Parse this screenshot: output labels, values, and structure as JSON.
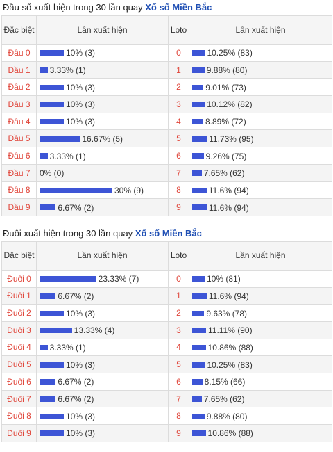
{
  "sections": [
    {
      "title_prefix": "Đầu số xuất hiện trong 30 lần quay ",
      "title_link": "Xổ số Miền Bắc",
      "headers": [
        "Đặc biệt",
        "Lần xuất hiện",
        "Loto",
        "Lần xuất hiện"
      ],
      "rows": [
        {
          "label": "Đầu 0",
          "special_pct": 10,
          "special_text": "10% (3)",
          "num": "0",
          "loto_pct": 10.25,
          "loto_text": "10.25% (83)"
        },
        {
          "label": "Đầu 1",
          "special_pct": 3.33,
          "special_text": "3.33% (1)",
          "num": "1",
          "loto_pct": 9.88,
          "loto_text": "9.88% (80)"
        },
        {
          "label": "Đầu 2",
          "special_pct": 10,
          "special_text": "10% (3)",
          "num": "2",
          "loto_pct": 9.01,
          "loto_text": "9.01% (73)"
        },
        {
          "label": "Đầu 3",
          "special_pct": 10,
          "special_text": "10% (3)",
          "num": "3",
          "loto_pct": 10.12,
          "loto_text": "10.12% (82)"
        },
        {
          "label": "Đầu 4",
          "special_pct": 10,
          "special_text": "10% (3)",
          "num": "4",
          "loto_pct": 8.89,
          "loto_text": "8.89% (72)"
        },
        {
          "label": "Đầu 5",
          "special_pct": 16.67,
          "special_text": "16.67% (5)",
          "num": "5",
          "loto_pct": 11.73,
          "loto_text": "11.73% (95)"
        },
        {
          "label": "Đầu 6",
          "special_pct": 3.33,
          "special_text": "3.33% (1)",
          "num": "6",
          "loto_pct": 9.26,
          "loto_text": "9.26% (75)"
        },
        {
          "label": "Đầu 7",
          "special_pct": 0,
          "special_text": "0% (0)",
          "num": "7",
          "loto_pct": 7.65,
          "loto_text": "7.65% (62)"
        },
        {
          "label": "Đầu 8",
          "special_pct": 30,
          "special_text": "30% (9)",
          "num": "8",
          "loto_pct": 11.6,
          "loto_text": "11.6% (94)"
        },
        {
          "label": "Đầu 9",
          "special_pct": 6.67,
          "special_text": "6.67% (2)",
          "num": "9",
          "loto_pct": 11.6,
          "loto_text": "11.6% (94)"
        }
      ]
    },
    {
      "title_prefix": "Đuôi xuất hiện trong 30 lần quay ",
      "title_link": "Xổ số Miền Bắc",
      "headers": [
        "Đặc biệt",
        "Lần xuất hiện",
        "Loto",
        "Lần xuất hiện"
      ],
      "rows": [
        {
          "label": "Đuôi 0",
          "special_pct": 23.33,
          "special_text": "23.33% (7)",
          "num": "0",
          "loto_pct": 10,
          "loto_text": "10% (81)"
        },
        {
          "label": "Đuôi 1",
          "special_pct": 6.67,
          "special_text": "6.67% (2)",
          "num": "1",
          "loto_pct": 11.6,
          "loto_text": "11.6% (94)"
        },
        {
          "label": "Đuôi 2",
          "special_pct": 10,
          "special_text": "10% (3)",
          "num": "2",
          "loto_pct": 9.63,
          "loto_text": "9.63% (78)"
        },
        {
          "label": "Đuôi 3",
          "special_pct": 13.33,
          "special_text": "13.33% (4)",
          "num": "3",
          "loto_pct": 11.11,
          "loto_text": "11.11% (90)"
        },
        {
          "label": "Đuôi 4",
          "special_pct": 3.33,
          "special_text": "3.33% (1)",
          "num": "4",
          "loto_pct": 10.86,
          "loto_text": "10.86% (88)"
        },
        {
          "label": "Đuôi 5",
          "special_pct": 10,
          "special_text": "10% (3)",
          "num": "5",
          "loto_pct": 10.25,
          "loto_text": "10.25% (83)"
        },
        {
          "label": "Đuôi 6",
          "special_pct": 6.67,
          "special_text": "6.67% (2)",
          "num": "6",
          "loto_pct": 8.15,
          "loto_text": "8.15% (66)"
        },
        {
          "label": "Đuôi 7",
          "special_pct": 6.67,
          "special_text": "6.67% (2)",
          "num": "7",
          "loto_pct": 7.65,
          "loto_text": "7.65% (62)"
        },
        {
          "label": "Đuôi 8",
          "special_pct": 10,
          "special_text": "10% (3)",
          "num": "8",
          "loto_pct": 9.88,
          "loto_text": "9.88% (80)"
        },
        {
          "label": "Đuôi 9",
          "special_pct": 10,
          "special_text": "10% (3)",
          "num": "9",
          "loto_pct": 10.86,
          "loto_text": "10.86% (88)"
        }
      ]
    }
  ],
  "colors": {
    "bar": "#3d55d6",
    "label": "#e0453a",
    "link": "#1f4fb4"
  }
}
